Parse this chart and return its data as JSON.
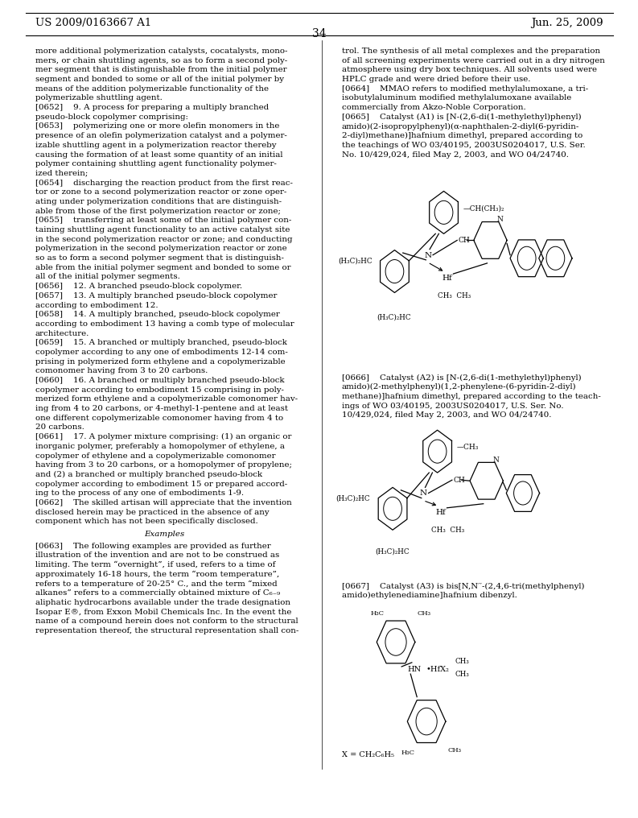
{
  "title": "US 2009/0163667 A1",
  "date": "Jun. 25, 2009",
  "page_num": "34",
  "background_color": "#ffffff",
  "font_size": 7.4,
  "left_lines": [
    "more additional polymerization catalysts, cocatalysts, mono-",
    "mers, or chain shuttling agents, so as to form a second poly-",
    "mer segment that is distinguishable from the initial polymer",
    "segment and bonded to some or all of the initial polymer by",
    "means of the addition polymerizable functionality of the",
    "polymerizable shuttling agent.",
    "[0652]    9. A process for preparing a multiply branched",
    "pseudo-block copolymer comprising:",
    "[0653]    polymerizing one or more olefin monomers in the",
    "presence of an olefin polymerization catalyst and a polymer-",
    "izable shuttling agent in a polymerization reactor thereby",
    "causing the formation of at least some quantity of an initial",
    "polymer containing shuttling agent functionality polymer-",
    "ized therein;",
    "[0654]    discharging the reaction product from the first reac-",
    "tor or zone to a second polymerization reactor or zone oper-",
    "ating under polymerization conditions that are distinguish-",
    "able from those of the first polymerization reactor or zone;",
    "[0655]    transferring at least some of the initial polymer con-",
    "taining shuttling agent functionality to an active catalyst site",
    "in the second polymerization reactor or zone; and conducting",
    "polymerization in the second polymerization reactor or zone",
    "so as to form a second polymer segment that is distinguish-",
    "able from the initial polymer segment and bonded to some or",
    "all of the initial polymer segments.",
    "[0656]    12. A branched pseudo-block copolymer.",
    "[0657]    13. A multiply branched pseudo-block copolymer",
    "according to embodiment 12.",
    "[0658]    14. A multiply branched, pseudo-block copolymer",
    "according to embodiment 13 having a comb type of molecular",
    "architecture.",
    "[0659]    15. A branched or multiply branched, pseudo-block",
    "copolymer according to any one of embodiments 12-14 com-",
    "prising in polymerized form ethylene and a copolymerizable",
    "comonomer having from 3 to 20 carbons.",
    "[0660]    16. A branched or multiply branched pseudo-block",
    "copolymer according to embodiment 15 comprising in poly-",
    "merized form ethylene and a copolymerizable comonomer hav-",
    "ing from 4 to 20 carbons, or 4-methyl-1-pentene and at least",
    "one different copolymerizable comonomer having from 4 to",
    "20 carbons.",
    "[0661]    17. A polymer mixture comprising: (1) an organic or",
    "inorganic polymer, preferably a homopolymer of ethylene, a",
    "copolymer of ethylene and a copolymerizable comonomer",
    "having from 3 to 20 carbons, or a homopolymer of propylene;",
    "and (2) a branched or multiply branched pseudo-block",
    "copolymer according to embodiment 15 or prepared accord-",
    "ing to the process of any one of embodiments 1-9.",
    "[0662]    The skilled artisan will appreciate that the invention",
    "disclosed herein may be practiced in the absence of any",
    "component which has not been specifically disclosed."
  ],
  "examples_heading": "Examples",
  "left_lines2": [
    "[0663]    The following examples are provided as further",
    "illustration of the invention and are not to be construed as",
    "limiting. The term “overnight”, if used, refers to a time of",
    "approximately 16-18 hours, the term “room temperature”,",
    "refers to a temperature of 20-25° C., and the term “mixed",
    "alkanes” refers to a commercially obtained mixture of C₆₋₉",
    "aliphatic hydrocarbons available under the trade designation",
    "Isopar E®, from Exxon Mobil Chemicals Inc. In the event the",
    "name of a compound herein does not conform to the structural",
    "representation thereof, the structural representation shall con-"
  ],
  "right_top_lines": [
    "trol. The synthesis of all metal complexes and the preparation",
    "of all screening experiments were carried out in a dry nitrogen",
    "atmosphere using dry box techniques. All solvents used were",
    "HPLC grade and were dried before their use."
  ],
  "para_0664": [
    "[0664]    MMAO refers to modified methylalumoxane, a tri-",
    "isobutylaluminum modified methylalumoxane available",
    "commercially from Akzo-Noble Corporation."
  ],
  "para_0665": [
    "[0665]    Catalyst (A1) is [N-(2,6-di(1-methylethyl)phenyl)",
    "amido)(2-isopropylphenyl)(α-naphthalen-2-diyl(6-pyridin-",
    "2-diyl)methane)]hafnium dimethyl, prepared according to",
    "the teachings of WO 03/40195, 2003US0204017, U.S. Ser.",
    "No. 10/429,024, filed May 2, 2003, and WO 04/24740."
  ],
  "para_0666": [
    "[0666]    Catalyst (A2) is [N-(2,6-di(1-methylethyl)phenyl)",
    "amido)(2-methylphenyl)(1,2-phenylene-(6-pyridin-2-diyl)",
    "methane)]hafnium dimethyl, prepared according to the teach-",
    "ings of WO 03/40195, 2003US0204017, U.S. Ser. No.",
    "10/429,024, filed May 2, 2003, and WO 04/24740."
  ],
  "para_0667": [
    "[0667]    Catalyst (A3) is bis[N,N′′-(2,4,6-tri(methylphenyl)",
    "amido)ethylenediamine]hafnium dibenzyl."
  ]
}
